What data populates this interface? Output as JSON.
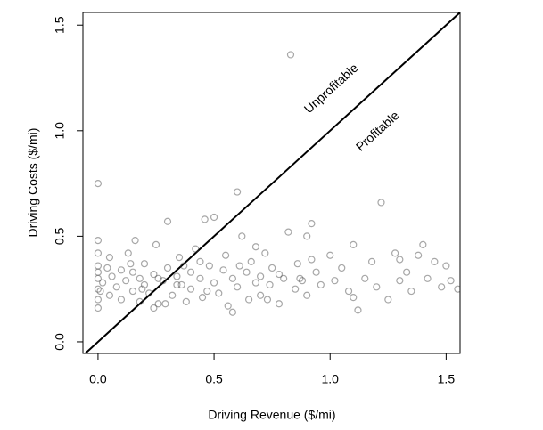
{
  "chart_data": {
    "type": "scatter",
    "x_label": "Driving Revenue ($/mi)",
    "y_label": "Driving Costs ($/mi)",
    "annotations": [
      "Unprofitable",
      "Profitable"
    ],
    "color": "rgba(60,60,60,0.45)",
    "xlim": [
      -0.065,
      1.56
    ],
    "ylim": [
      -0.055,
      1.56
    ],
    "xticks": [
      {
        "value": 0,
        "label": "0.0"
      },
      0.5,
      {
        "value": 1,
        "label": "1.0"
      },
      1.5
    ],
    "yticks": [
      {
        "value": 0,
        "label": "0.0"
      },
      0.5,
      {
        "value": 1,
        "label": "1.0"
      },
      1.5
    ],
    "x": [
      0,
      0,
      0,
      0,
      0,
      0,
      0,
      0,
      0,
      0.02,
      0.04,
      0.05,
      0.06,
      0.08,
      0.1,
      0.1,
      0.12,
      0.13,
      0.15,
      0.15,
      0.16,
      0.18,
      0.18,
      0.2,
      0.2,
      0.22,
      0.24,
      0.25,
      0.26,
      0.28,
      0.3,
      0.3,
      0.32,
      0.34,
      0.35,
      0.36,
      0.38,
      0.4,
      0.4,
      0.42,
      0.44,
      0.45,
      0.46,
      0.48,
      0.5,
      0.5,
      0.52,
      0.54,
      0.55,
      0.56,
      0.58,
      0.6,
      0.6,
      0.62,
      0.64,
      0.65,
      0.66,
      0.68,
      0.7,
      0.7,
      0.72,
      0.74,
      0.75,
      0.78,
      0.8,
      0.82,
      0.83,
      0.85,
      0.86,
      0.88,
      0.9,
      0.9,
      0.92,
      0.94,
      0.96,
      1.0,
      1.02,
      1.05,
      1.08,
      1.1,
      1.12,
      1.15,
      1.18,
      1.2,
      1.22,
      1.25,
      1.28,
      1.3,
      1.33,
      1.35,
      1.38,
      1.4,
      1.42,
      1.45,
      1.48,
      1.5,
      1.52,
      1.55,
      0.14,
      0.24,
      0.34,
      0.44,
      0.58,
      0.68,
      0.78,
      0.92,
      1.1,
      1.3,
      0.05,
      0.19,
      0.29,
      0.47,
      0.61,
      0.73,
      0.87,
      0.01,
      0.26,
      0.37
    ],
    "y": [
      0.48,
      0.42,
      0.36,
      0.3,
      0.25,
      0.2,
      0.16,
      0.75,
      0.33,
      0.28,
      0.35,
      0.22,
      0.31,
      0.26,
      0.34,
      0.2,
      0.29,
      0.42,
      0.24,
      0.33,
      0.48,
      0.3,
      0.19,
      0.37,
      0.27,
      0.23,
      0.32,
      0.46,
      0.18,
      0.29,
      0.57,
      0.35,
      0.22,
      0.31,
      0.4,
      0.27,
      0.19,
      0.33,
      0.25,
      0.44,
      0.3,
      0.21,
      0.58,
      0.36,
      0.28,
      0.59,
      0.23,
      0.34,
      0.41,
      0.17,
      0.3,
      0.71,
      0.26,
      0.5,
      0.33,
      0.2,
      0.38,
      0.28,
      0.31,
      0.22,
      0.42,
      0.27,
      0.35,
      0.18,
      0.3,
      0.52,
      1.36,
      0.25,
      0.37,
      0.29,
      0.5,
      0.22,
      0.56,
      0.33,
      0.27,
      0.41,
      0.29,
      0.35,
      0.24,
      0.46,
      0.15,
      0.3,
      0.38,
      0.26,
      0.66,
      0.2,
      0.42,
      0.29,
      0.33,
      0.24,
      0.41,
      0.46,
      0.3,
      0.38,
      0.26,
      0.36,
      0.29,
      0.25,
      0.37,
      0.16,
      0.27,
      0.38,
      0.14,
      0.45,
      0.32,
      0.39,
      0.21,
      0.39,
      0.4,
      0.25,
      0.18,
      0.24,
      0.36,
      0.2,
      0.3,
      0.24,
      0.3,
      0.36
    ]
  }
}
